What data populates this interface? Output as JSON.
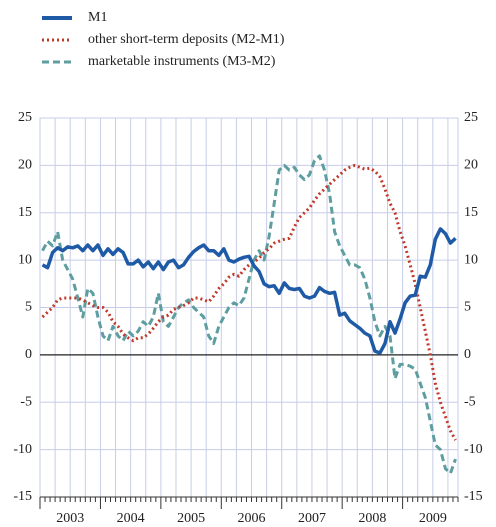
{
  "chart_data": {
    "type": "line",
    "categories": [
      null,
      null,
      null,
      null,
      null,
      null,
      "2003",
      null,
      null,
      null,
      null,
      null,
      null,
      null,
      null,
      null,
      null,
      null,
      "2004",
      null,
      null,
      null,
      null,
      null,
      null,
      null,
      null,
      null,
      null,
      null,
      "2005",
      null,
      null,
      null,
      null,
      null,
      null,
      null,
      null,
      null,
      null,
      null,
      "2006",
      null,
      null,
      null,
      null,
      null,
      null,
      null,
      null,
      null,
      null,
      null,
      "2007",
      null,
      null,
      null,
      null,
      null,
      null,
      null,
      null,
      null,
      null,
      null,
      "2008",
      null,
      null,
      null,
      null,
      null,
      null,
      null,
      null,
      null,
      null,
      null,
      "2009",
      null,
      null,
      null,
      null
    ],
    "series": [
      {
        "name": "M1",
        "color": "#1f5aa6",
        "style": "solid",
        "values": [
          9.5,
          9.2,
          10.8,
          11.3,
          11,
          11.4,
          11.3,
          11.5,
          11,
          11.6,
          11,
          11.6,
          10.5,
          11.2,
          10.6,
          11.2,
          10.8,
          9.6,
          9.6,
          10,
          9.3,
          9.8,
          9.1,
          9.8,
          9,
          9.8,
          10,
          9.2,
          9.5,
          10.3,
          10.9,
          11.3,
          11.6,
          11,
          11,
          10.5,
          11.2,
          10,
          9.8,
          10.1,
          10.3,
          10.4,
          9.4,
          8.8,
          7.5,
          7.2,
          7.3,
          6.5,
          7.6,
          7,
          6.9,
          7,
          6.2,
          6,
          6.2,
          7.1,
          6.7,
          6.5,
          6.6,
          4.2,
          4.4,
          3.6,
          3.2,
          2.8,
          2.3,
          2,
          0.4,
          0.2,
          1.2,
          3.5,
          2.3,
          3.8,
          5.5,
          6.2,
          6.3,
          8.3,
          8.2,
          9.5,
          12.2,
          13.3,
          12.8,
          11.8,
          12.3
        ]
      },
      {
        "name": "other short-term deposits (M2-M1)",
        "color": "#c0392b",
        "style": "dotted",
        "values": [
          4,
          4.5,
          5,
          5.8,
          6,
          6,
          6,
          6,
          5.8,
          5.5,
          5.2,
          5,
          5,
          4.5,
          3.5,
          3,
          2.2,
          1.8,
          1.5,
          1.8,
          1.8,
          2.2,
          2.8,
          3.5,
          4,
          4.2,
          4.8,
          5,
          5.2,
          5.5,
          6,
          6,
          5.8,
          5.6,
          6.2,
          7,
          7.5,
          8.2,
          8.5,
          8.3,
          9,
          9.5,
          9.8,
          10.2,
          10.8,
          11.2,
          11.8,
          12,
          12.2,
          12.3,
          13.5,
          14.5,
          15,
          15.5,
          16.3,
          17,
          17.5,
          18,
          18.5,
          19,
          19.5,
          19.8,
          20,
          19.8,
          19.6,
          19.7,
          19.4,
          18.8,
          17.5,
          16,
          15,
          13,
          11.5,
          9.5,
          7.5,
          5,
          2.5,
          0,
          -3,
          -5,
          -6.5,
          -8,
          -9
        ]
      },
      {
        "name": "marketable instruments (M3-M2)",
        "color": "#5f9ea0",
        "style": "dashed",
        "values": [
          11,
          12,
          11.5,
          13,
          10,
          9,
          8,
          6,
          4,
          7,
          6.5,
          4,
          2,
          1.5,
          3,
          2,
          1.5,
          2.5,
          2,
          2.5,
          3.5,
          3,
          4,
          6.5,
          3.5,
          3,
          4,
          5,
          5.5,
          5.8,
          5,
          4.5,
          4,
          2,
          1.2,
          3,
          4,
          5,
          5.5,
          5.2,
          6,
          8,
          10,
          11,
          10,
          12.5,
          16,
          19.5,
          20,
          19.5,
          19.8,
          19,
          18.5,
          19,
          20.5,
          21,
          19.5,
          17,
          13,
          11.5,
          10.5,
          9.5,
          9.5,
          9.2,
          8,
          6,
          3.5,
          2,
          3,
          2,
          -2.5,
          -1,
          -1,
          -1.2,
          -1.5,
          -3,
          -4.5,
          -7,
          -9.5,
          -10,
          -12,
          -12.5,
          -11
        ]
      }
    ],
    "ylim": [
      -15,
      25
    ],
    "yticks": [
      -15,
      -10,
      -5,
      0,
      5,
      10,
      15,
      20,
      25
    ],
    "grid": true
  }
}
